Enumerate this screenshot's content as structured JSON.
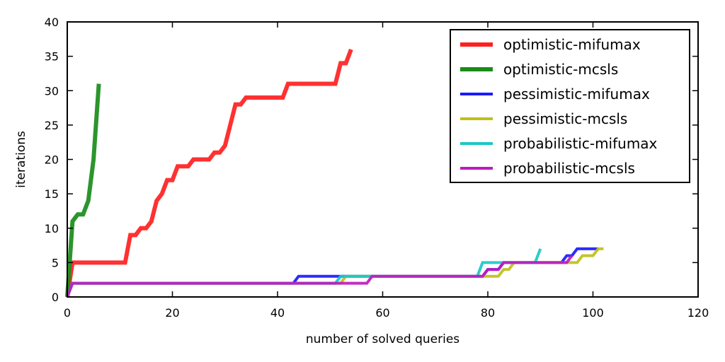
{
  "chart_data": {
    "type": "line",
    "xlabel": "number of solved queries",
    "ylabel": "iterations",
    "xlim": [
      0,
      120
    ],
    "ylim": [
      0,
      40
    ],
    "xticks": [
      0,
      20,
      40,
      60,
      80,
      100,
      120
    ],
    "yticks": [
      0,
      5,
      10,
      15,
      20,
      25,
      30,
      35,
      40
    ],
    "grid": false,
    "legend_position": "top-right",
    "series": [
      {
        "name": "optimistic-mifumax",
        "color": "#ff2020",
        "x": [
          0,
          1,
          2,
          3,
          4,
          5,
          6,
          7,
          8,
          9,
          10,
          11,
          12,
          13,
          14,
          15,
          16,
          17,
          18,
          19,
          20,
          21,
          22,
          23,
          24,
          25,
          26,
          27,
          28,
          29,
          30,
          31,
          32,
          33,
          34,
          35,
          36,
          37,
          38,
          39,
          40,
          41,
          42,
          43,
          44,
          45,
          46,
          47,
          48,
          49,
          50,
          51,
          52,
          53,
          54
        ],
        "y": [
          0,
          5,
          5,
          5,
          5,
          5,
          5,
          5,
          5,
          5,
          5,
          5,
          9,
          9,
          10,
          10,
          11,
          14,
          15,
          17,
          17,
          19,
          19,
          19,
          20,
          20,
          20,
          20,
          21,
          21,
          22,
          25,
          28,
          28,
          29,
          29,
          29,
          29,
          29,
          29,
          29,
          29,
          31,
          31,
          31,
          31,
          31,
          31,
          31,
          31,
          31,
          31,
          34,
          34,
          36
        ]
      },
      {
        "name": "optimistic-mcsls",
        "color": "#1a8c1a",
        "x": [
          0,
          1,
          2,
          3,
          4,
          5,
          6
        ],
        "y": [
          0,
          11,
          12,
          12,
          14,
          20,
          31
        ]
      },
      {
        "name": "pessimistic-mifumax",
        "color": "#1a1aff",
        "x": [
          0,
          1,
          2,
          43,
          44,
          52,
          53,
          57,
          58,
          79,
          80,
          82,
          83,
          84,
          85,
          94,
          95,
          96,
          97,
          100,
          101
        ],
        "y": [
          0,
          2,
          2,
          2,
          3,
          3,
          3,
          3,
          3,
          3,
          4,
          4,
          5,
          5,
          5,
          5,
          6,
          6,
          7,
          7,
          7
        ]
      },
      {
        "name": "pessimistic-mcsls",
        "color": "#bfbf1a",
        "x": [
          0,
          1,
          2,
          52,
          53,
          58,
          79,
          80,
          82,
          83,
          84,
          85,
          95,
          96,
          97,
          98,
          100,
          101,
          102
        ],
        "y": [
          0,
          2,
          2,
          2,
          3,
          3,
          3,
          3,
          3,
          4,
          4,
          5,
          5,
          5,
          5,
          6,
          6,
          7,
          7
        ]
      },
      {
        "name": "probabilistic-mifumax",
        "color": "#1ac8c8",
        "x": [
          0,
          1,
          2,
          51,
          52,
          57,
          78,
          79,
          83,
          84,
          88,
          89,
          90
        ],
        "y": [
          0,
          2,
          2,
          2,
          3,
          3,
          3,
          5,
          5,
          5,
          5,
          5,
          7
        ]
      },
      {
        "name": "probabilistic-mcsls",
        "color": "#bf1abf",
        "x": [
          0,
          1,
          2,
          57,
          58,
          79,
          80,
          82,
          83,
          85,
          95,
          96
        ],
        "y": [
          0,
          2,
          2,
          2,
          3,
          3,
          4,
          4,
          5,
          5,
          5,
          6
        ]
      }
    ]
  }
}
